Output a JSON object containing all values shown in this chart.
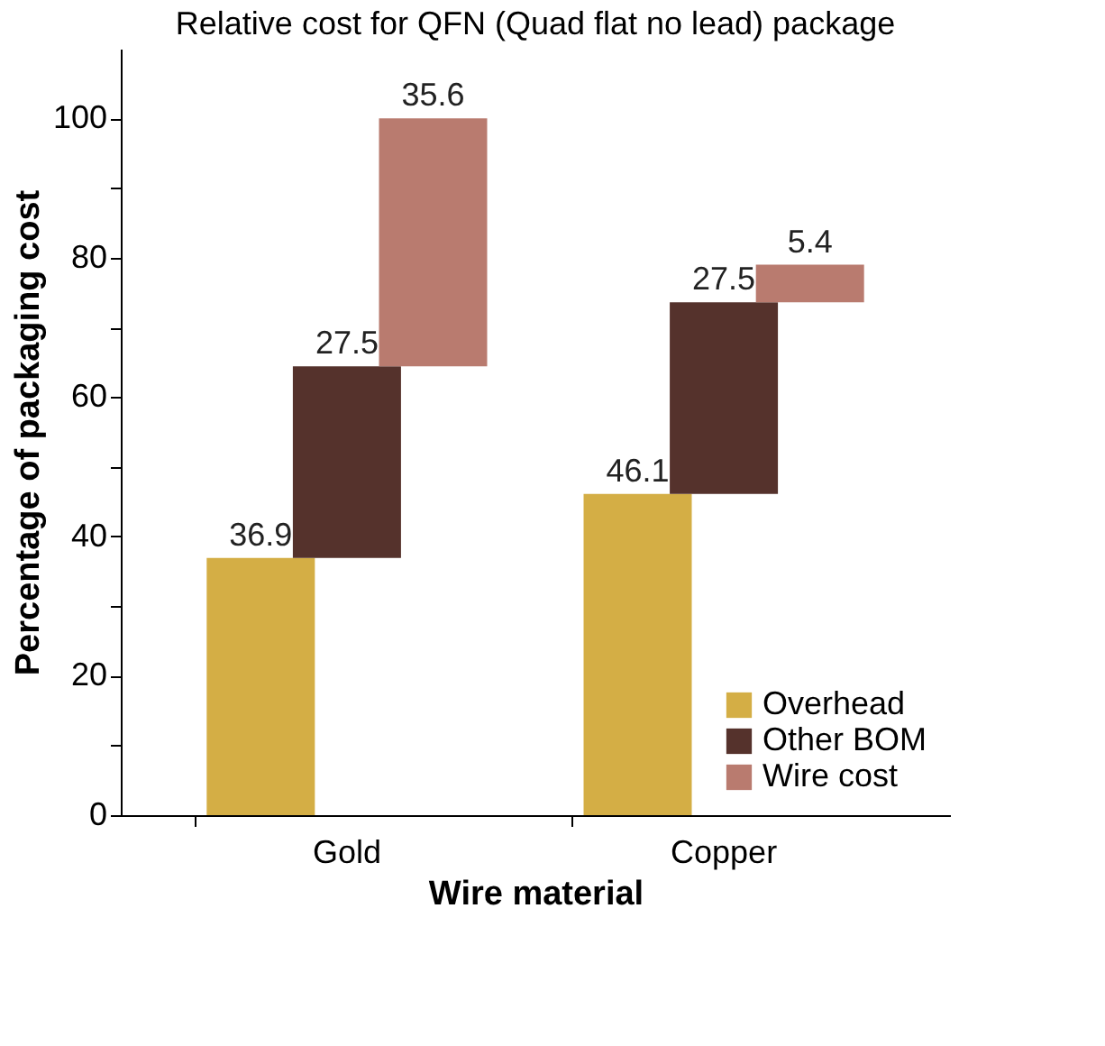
{
  "chart_data": {
    "type": "bar",
    "title": "Relative cost for QFN (Quad flat no lead) package",
    "xlabel": "Wire material",
    "ylabel": "Percentage of packaging cost",
    "categories": [
      "Gold",
      "Copper"
    ],
    "series": [
      {
        "name": "Overhead",
        "color": "#d4ae45",
        "values": [
          36.9,
          46.1
        ],
        "base": [
          0,
          0
        ]
      },
      {
        "name": "Other BOM",
        "color": "#55322c",
        "values": [
          27.5,
          27.5
        ],
        "base": [
          36.9,
          46.1
        ]
      },
      {
        "name": "Wire cost",
        "color": "#b97b6f",
        "values": [
          35.6,
          5.4
        ],
        "base": [
          64.4,
          73.6
        ]
      }
    ],
    "ylim": [
      0,
      110
    ],
    "yticks": [
      0,
      {
        "value": 10,
        "label": null
      },
      20,
      {
        "value": 30,
        "label": null
      },
      40,
      {
        "value": 50,
        "label": null
      },
      60,
      {
        "value": 70,
        "label": null
      },
      80,
      {
        "value": 90,
        "label": null
      },
      100
    ],
    "data_labels": true,
    "legend": "bottom right"
  }
}
